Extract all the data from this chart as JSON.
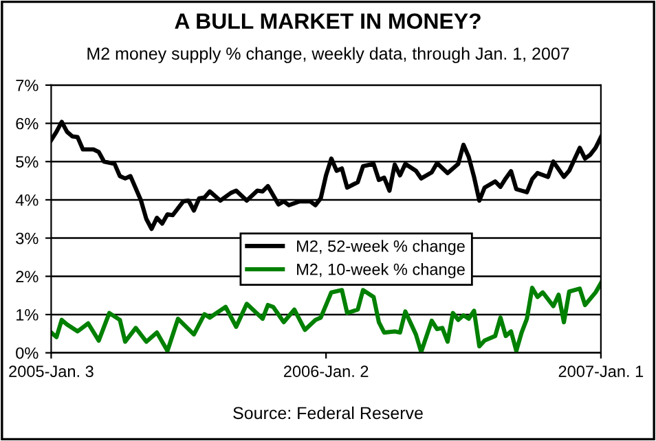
{
  "chart_data": {
    "type": "line",
    "title": "A BULL MARKET IN MONEY?",
    "subtitle": "M2 money supply % change, weekly data, through Jan. 1, 2007",
    "annotations": [
      "Source: Federal Reserve"
    ],
    "series": [
      {
        "name": "M2, 52-week % change",
        "color": "#000000",
        "x": [
          "2005-01-03",
          "2005-01-10",
          "2005-01-17",
          "2005-01-24",
          "2005-01-31",
          "2005-02-07",
          "2005-02-14",
          "2005-02-28",
          "2005-03-07",
          "2005-03-14",
          "2005-03-28",
          "2005-04-04",
          "2005-04-11",
          "2005-04-18",
          "2005-05-02",
          "2005-05-09",
          "2005-05-16",
          "2005-05-23",
          "2005-05-30",
          "2005-06-06",
          "2005-06-13",
          "2005-06-27",
          "2005-07-04",
          "2005-07-11",
          "2005-07-18",
          "2005-07-25",
          "2005-08-01",
          "2005-08-15",
          "2005-08-29",
          "2005-09-05",
          "2005-09-19",
          "2005-10-03",
          "2005-10-10",
          "2005-10-17",
          "2005-10-31",
          "2005-11-07",
          "2005-11-14",
          "2005-11-28",
          "2005-12-12",
          "2005-12-19",
          "2005-12-26",
          "2006-01-02",
          "2006-01-09",
          "2006-01-16",
          "2006-01-23",
          "2006-01-30",
          "2006-02-13",
          "2006-02-20",
          "2006-03-06",
          "2006-03-13",
          "2006-03-20",
          "2006-03-27",
          "2006-04-03",
          "2006-04-10",
          "2006-04-17",
          "2006-05-01",
          "2006-05-08",
          "2006-05-22",
          "2006-05-29",
          "2006-06-12",
          "2006-06-26",
          "2006-07-03",
          "2006-07-10",
          "2006-07-17",
          "2006-07-24",
          "2006-07-31",
          "2006-08-14",
          "2006-08-21",
          "2006-08-28",
          "2006-09-04",
          "2006-09-11",
          "2006-09-25",
          "2006-10-02",
          "2006-10-09",
          "2006-10-23",
          "2006-10-30",
          "2006-11-13",
          "2006-11-20",
          "2006-12-04",
          "2006-12-11",
          "2006-12-18",
          "2006-12-25",
          "2007-01-01"
        ],
        "values": [
          5.56,
          5.78,
          6.04,
          5.78,
          5.66,
          5.64,
          5.32,
          5.32,
          5.25,
          5.0,
          4.94,
          4.62,
          4.56,
          4.62,
          3.98,
          3.5,
          3.24,
          3.53,
          3.38,
          3.62,
          3.6,
          3.96,
          3.98,
          3.72,
          4.04,
          4.06,
          4.22,
          3.98,
          4.18,
          4.24,
          3.98,
          4.24,
          4.22,
          4.36,
          3.88,
          3.96,
          3.86,
          3.96,
          3.96,
          3.86,
          4.04,
          4.64,
          5.08,
          4.76,
          4.82,
          4.32,
          4.46,
          4.88,
          4.94,
          4.52,
          4.58,
          4.24,
          4.92,
          4.64,
          4.94,
          4.76,
          4.56,
          4.72,
          4.96,
          4.7,
          4.94,
          5.44,
          5.12,
          4.6,
          3.98,
          4.32,
          4.48,
          4.34,
          4.56,
          4.75,
          4.28,
          4.2,
          4.54,
          4.7,
          4.6,
          5.0,
          4.6,
          4.76,
          5.36,
          5.08,
          5.18,
          5.36,
          5.64
        ]
      },
      {
        "name": "M2, 10-week % change",
        "color": "#008000",
        "x": [
          "2005-01-03",
          "2005-01-10",
          "2005-01-17",
          "2005-01-24",
          "2005-02-07",
          "2005-02-21",
          "2005-03-07",
          "2005-03-21",
          "2005-04-04",
          "2005-04-11",
          "2005-04-25",
          "2005-05-09",
          "2005-05-23",
          "2005-06-06",
          "2005-06-20",
          "2005-07-11",
          "2005-07-25",
          "2005-08-01",
          "2005-08-22",
          "2005-09-05",
          "2005-09-19",
          "2005-10-10",
          "2005-10-17",
          "2005-10-24",
          "2005-11-07",
          "2005-11-21",
          "2005-12-05",
          "2005-12-19",
          "2005-12-26",
          "2006-01-09",
          "2006-01-23",
          "2006-01-30",
          "2006-02-13",
          "2006-02-20",
          "2006-03-06",
          "2006-03-13",
          "2006-03-20",
          "2006-04-03",
          "2006-04-10",
          "2006-04-17",
          "2006-05-01",
          "2006-05-08",
          "2006-05-22",
          "2006-05-29",
          "2006-06-05",
          "2006-06-12",
          "2006-06-19",
          "2006-06-26",
          "2006-07-03",
          "2006-07-10",
          "2006-07-17",
          "2006-07-24",
          "2006-07-31",
          "2006-08-14",
          "2006-08-21",
          "2006-08-28",
          "2006-09-04",
          "2006-09-11",
          "2006-09-18",
          "2006-09-25",
          "2006-10-02",
          "2006-10-09",
          "2006-10-16",
          "2006-10-30",
          "2006-11-06",
          "2006-11-13",
          "2006-11-20",
          "2006-12-04",
          "2006-12-11",
          "2006-12-25",
          "2007-01-01"
        ],
        "values": [
          0.53,
          0.41,
          0.86,
          0.74,
          0.56,
          0.77,
          0.32,
          1.04,
          0.86,
          0.29,
          0.65,
          0.29,
          0.53,
          0.05,
          0.89,
          0.48,
          1.01,
          0.92,
          1.2,
          0.68,
          1.28,
          0.89,
          1.25,
          1.2,
          0.8,
          1.13,
          0.6,
          0.86,
          0.92,
          1.58,
          1.64,
          1.04,
          1.13,
          1.64,
          1.46,
          0.8,
          0.53,
          0.56,
          0.53,
          1.08,
          0.48,
          0.02,
          0.84,
          0.62,
          0.65,
          0.29,
          1.04,
          0.86,
          0.98,
          0.89,
          1.1,
          0.17,
          0.32,
          0.44,
          0.92,
          0.44,
          0.56,
          0.05,
          0.53,
          0.89,
          1.7,
          1.46,
          1.58,
          1.22,
          1.52,
          0.8,
          1.6,
          1.68,
          1.25,
          1.58,
          1.82
        ]
      }
    ],
    "xlim": [
      "2005-01-03",
      "2007-01-01"
    ],
    "xticks": [
      {
        "value": "2005-01-03",
        "label": "2005-Jan. 3"
      },
      {
        "value": "2006-01-02",
        "label": "2006-Jan. 2"
      },
      {
        "value": "2007-01-01",
        "label": "2007-Jan. 1"
      }
    ],
    "ylim": [
      0,
      7
    ],
    "yticks": [
      {
        "value": 0,
        "label": "0%"
      },
      {
        "value": 1,
        "label": "1%"
      },
      {
        "value": 2,
        "label": "2%"
      },
      {
        "value": 3,
        "label": "3%"
      },
      {
        "value": 4,
        "label": "4%"
      },
      {
        "value": 5,
        "label": "5%"
      },
      {
        "value": 6,
        "label": "6%"
      },
      {
        "value": 7,
        "label": "7%"
      }
    ],
    "grid": "y",
    "legend": "center",
    "marker": "none",
    "line_style": "solid"
  }
}
